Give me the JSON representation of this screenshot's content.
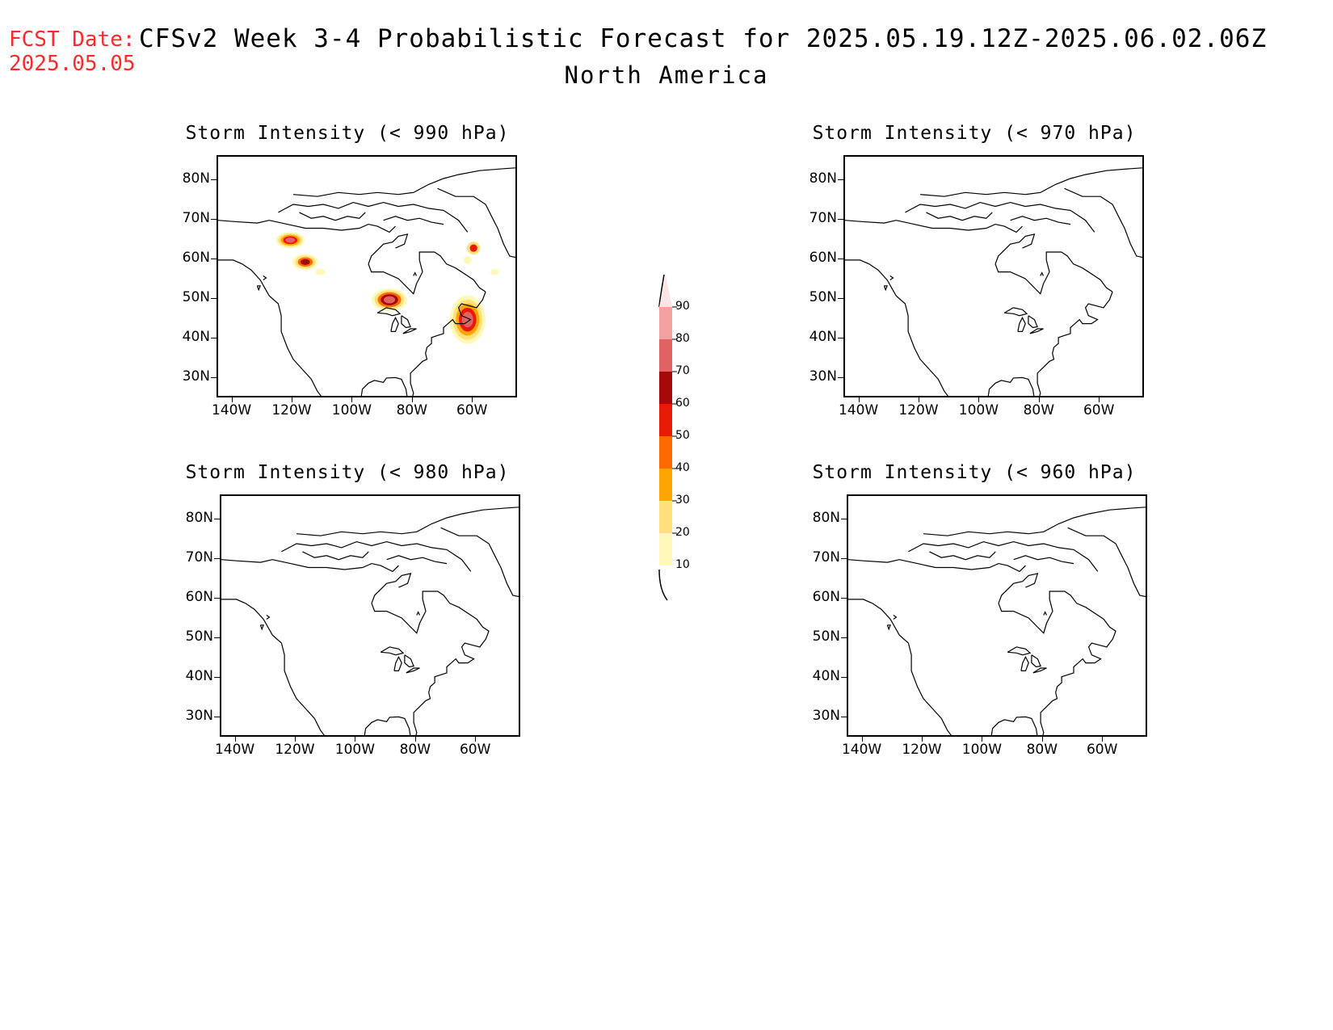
{
  "header": {
    "fcst_label": "FCST Date:",
    "fcst_date": "2025.05.05",
    "title": "CFSv2 Week 3-4 Probabilistic Forecast for 2025.05.19.12Z-2025.06.02.06Z",
    "subtitle": "North America"
  },
  "axes": {
    "lat_labels": [
      "80N",
      "70N",
      "60N",
      "50N",
      "40N",
      "30N"
    ],
    "lon_labels": [
      "140W",
      "120W",
      "100W",
      "80W",
      "60W"
    ]
  },
  "panels": [
    {
      "title": "Storm Intensity (< 990 hPa)",
      "has_signal": true
    },
    {
      "title": "Storm Intensity (< 970 hPa)",
      "has_signal": false
    },
    {
      "title": "Storm Intensity (< 980 hPa)",
      "has_signal": false
    },
    {
      "title": "Storm Intensity (< 960 hPa)",
      "has_signal": false
    }
  ],
  "legend": {
    "labels": [
      "90",
      "80",
      "70",
      "60",
      "50",
      "40",
      "30",
      "20",
      "10"
    ],
    "colors": [
      "#fbe4e4",
      "#f2a0a0",
      "#e06262",
      "#a50a0a",
      "#e81a06",
      "#ff6a00",
      "#ffa500",
      "#ffe07a",
      "#fff8b8"
    ]
  }
}
